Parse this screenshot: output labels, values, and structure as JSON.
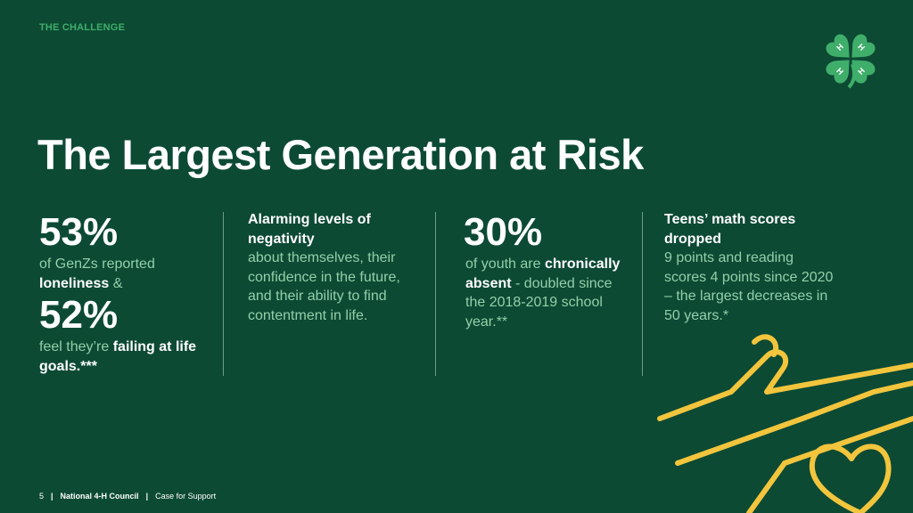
{
  "header": {
    "eyebrow": "THE CHALLENGE"
  },
  "title": "The Largest Generation at Risk",
  "columns": [
    {
      "items": [
        {
          "stat": "53%"
        },
        {
          "runs": [
            {
              "text": "of GenZs reported ",
              "bold": false
            },
            {
              "text": "loneliness",
              "bold": true
            },
            {
              "text": " &",
              "bold": false
            }
          ]
        },
        {
          "stat": "52%"
        },
        {
          "runs": [
            {
              "text": "feel they’re ",
              "bold": false
            },
            {
              "text": "failing at life goals.***",
              "bold": true
            }
          ]
        }
      ]
    },
    {
      "items": [
        {
          "runs": [
            {
              "text": "Alarming levels of negativity",
              "bold": true
            }
          ]
        },
        {
          "runs": [
            {
              "text": "about themselves, their confidence in the future, and their ability to find contentment in life.",
              "bold": false
            }
          ]
        }
      ]
    },
    {
      "items": [
        {
          "stat": "30%"
        },
        {
          "runs": [
            {
              "text": "of youth are ",
              "bold": false
            },
            {
              "text": "chronically absent",
              "bold": true
            },
            {
              "text": " - doubled since the 2018-2019 school year.**",
              "bold": false
            }
          ]
        }
      ]
    },
    {
      "items": [
        {
          "runs": [
            {
              "text": "Teens’ math scores dropped",
              "bold": true
            }
          ]
        },
        {
          "runs": [
            {
              "text": "9 points and reading scores 4 points since 2020 – the largest decreases in 50 years.*",
              "bold": false
            }
          ]
        }
      ]
    }
  ],
  "footer": {
    "page": "5",
    "organization": "National 4-H Council",
    "document": "Case for Support"
  }
}
